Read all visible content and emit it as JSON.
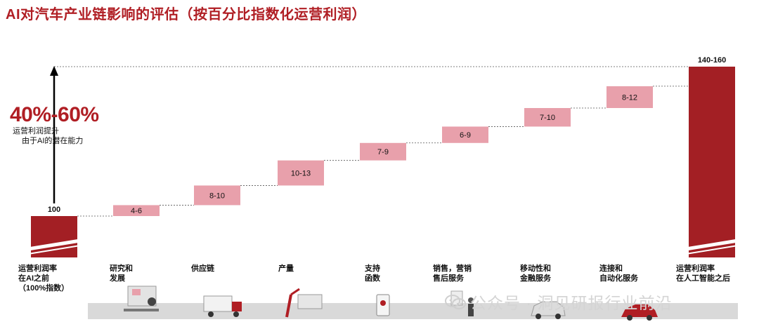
{
  "title": "AI对汽车产业链影响的评估（按百分比指数化运营利润）",
  "callout": {
    "value": "40%-60%",
    "line1": "运营利润提升",
    "line2": "由于AI的潜在能力"
  },
  "watermark": "公众号 · 洞见研报行业前沿",
  "colors": {
    "accent": "#b01e24",
    "total_bar": "#a31f24",
    "increment_bar": "#e8a0ab",
    "connector": "#555555",
    "ground_strip": "#d9d9d9"
  },
  "chart_data": {
    "type": "waterfall",
    "title": "AI对汽车产业链影响的评估（按百分比指数化运营利润）",
    "categories": [
      "运营利润率\n在AI之前\n（100%指数）",
      "研究和\n发展",
      "供应链",
      "产量",
      "支持\n函数",
      "销售，营销\n售后服务",
      "移动性和\n金融服务",
      "连接和\n自动化服务",
      "运营利润率\n在人工智能之后"
    ],
    "bars": [
      {
        "kind": "total",
        "value": 100,
        "label": "100"
      },
      {
        "kind": "increment",
        "low": 4,
        "high": 6,
        "label": "4-6"
      },
      {
        "kind": "increment",
        "low": 8,
        "high": 10,
        "label": "8-10"
      },
      {
        "kind": "increment",
        "low": 10,
        "high": 13,
        "label": "10-13"
      },
      {
        "kind": "increment",
        "low": 7,
        "high": 9,
        "label": "7-9"
      },
      {
        "kind": "increment",
        "low": 6,
        "high": 9,
        "label": "6-9"
      },
      {
        "kind": "increment",
        "low": 7,
        "high": 10,
        "label": "7-10"
      },
      {
        "kind": "increment",
        "low": 8,
        "high": 12,
        "label": "8-12"
      },
      {
        "kind": "total",
        "low": 140,
        "high": 160,
        "label": "140-160"
      }
    ],
    "axis_break": true,
    "xlabel": "",
    "ylabel": ""
  },
  "illustrations": [
    "rd-workstation-icon",
    "delivery-truck-icon",
    "robot-arm-factory-icon",
    "phone-support-icon",
    "dealership-salesperson-icon",
    "shared-car-icon",
    "connected-car-icon"
  ]
}
